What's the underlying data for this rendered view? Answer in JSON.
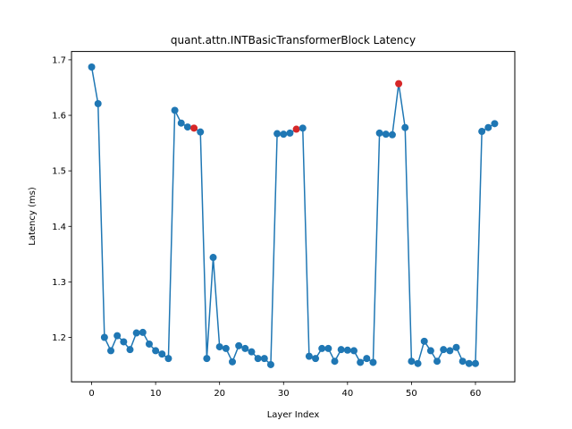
{
  "chart_data": {
    "type": "line",
    "title": "quant.attn.INTBasicTransformerBlock Latency",
    "xlabel": "Layer Index",
    "ylabel": "Latency (ms)",
    "xlim": [
      -3.15,
      66.15
    ],
    "ylim": [
      1.12,
      1.715
    ],
    "xticks": [
      0,
      10,
      20,
      30,
      40,
      50,
      60
    ],
    "yticks": [
      1.2,
      1.3,
      1.4,
      1.5,
      1.6,
      1.7
    ],
    "grid": false,
    "line_color": "#1f77b4",
    "marker_color": "#1f77b4",
    "highlight_color": "#d62728",
    "highlight_indices": [
      16,
      32,
      48
    ],
    "x": [
      0,
      1,
      2,
      3,
      4,
      5,
      6,
      7,
      8,
      9,
      10,
      11,
      12,
      13,
      14,
      15,
      16,
      17,
      18,
      19,
      20,
      21,
      22,
      23,
      24,
      25,
      26,
      27,
      28,
      29,
      30,
      31,
      32,
      33,
      34,
      35,
      36,
      37,
      38,
      39,
      40,
      41,
      42,
      43,
      44,
      45,
      46,
      47,
      48,
      49,
      50,
      51,
      52,
      53,
      54,
      55,
      56,
      57,
      58,
      59,
      60,
      61,
      62,
      63
    ],
    "values": [
      1.687,
      1.621,
      1.2,
      1.176,
      1.203,
      1.192,
      1.178,
      1.208,
      1.209,
      1.188,
      1.176,
      1.17,
      1.162,
      1.609,
      1.586,
      1.579,
      1.577,
      1.57,
      1.162,
      1.344,
      1.183,
      1.18,
      1.156,
      1.185,
      1.18,
      1.174,
      1.162,
      1.162,
      1.151,
      1.567,
      1.566,
      1.568,
      1.575,
      1.577,
      1.166,
      1.162,
      1.18,
      1.18,
      1.157,
      1.178,
      1.177,
      1.176,
      1.155,
      1.162,
      1.155,
      1.568,
      1.566,
      1.565,
      1.657,
      1.578,
      1.157,
      1.153,
      1.193,
      1.176,
      1.157,
      1.178,
      1.176,
      1.182,
      1.157,
      1.153,
      1.153,
      1.571,
      1.578,
      1.585
    ]
  }
}
